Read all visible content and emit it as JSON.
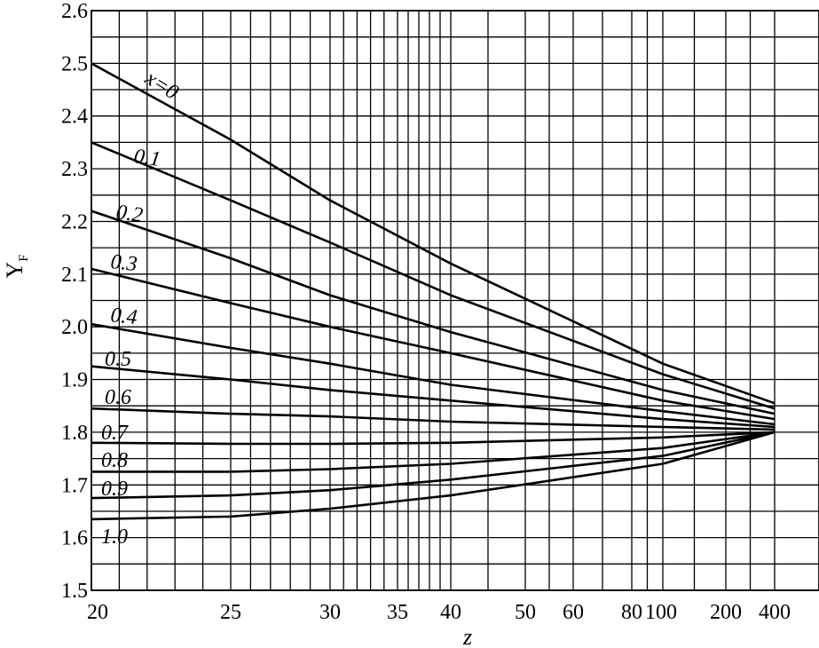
{
  "chart_data": {
    "type": "line",
    "xlabel": "z",
    "ylabel": "Y",
    "ylabel_subscript": "F",
    "x_scale": "nonlinear (reciprocal-type, 20 to 400)",
    "ylim": [
      1.5,
      2.6
    ],
    "grid": true,
    "x_ticks": [
      "20",
      "25",
      "30",
      "35",
      "40",
      "50",
      "60",
      "80",
      "100",
      "200",
      "400"
    ],
    "y_ticks": [
      "1.5",
      "1.6",
      "1.7",
      "1.8",
      "1.9",
      "2.0",
      "2.1",
      "2.2",
      "2.3",
      "2.4",
      "2.5",
      "2.6"
    ],
    "series": [
      {
        "name": "x=0",
        "points": [
          [
            20,
            2.5
          ],
          [
            25,
            2.355
          ],
          [
            30,
            2.24
          ],
          [
            40,
            2.12
          ],
          [
            100,
            1.93
          ],
          [
            400,
            1.855
          ]
        ]
      },
      {
        "name": "0.1",
        "points": [
          [
            20,
            2.35
          ],
          [
            25,
            2.24
          ],
          [
            30,
            2.16
          ],
          [
            40,
            2.06
          ],
          [
            100,
            1.91
          ],
          [
            400,
            1.845
          ]
        ]
      },
      {
        "name": "0.2",
        "points": [
          [
            20,
            2.22
          ],
          [
            25,
            2.13
          ],
          [
            30,
            2.06
          ],
          [
            40,
            1.99
          ],
          [
            100,
            1.88
          ],
          [
            400,
            1.835
          ]
        ]
      },
      {
        "name": "0.3",
        "points": [
          [
            20,
            2.11
          ],
          [
            25,
            2.045
          ],
          [
            30,
            2.0
          ],
          [
            40,
            1.95
          ],
          [
            100,
            1.86
          ],
          [
            400,
            1.825
          ]
        ]
      },
      {
        "name": "0.4",
        "points": [
          [
            20,
            2.005
          ],
          [
            25,
            1.96
          ],
          [
            30,
            1.93
          ],
          [
            40,
            1.89
          ],
          [
            100,
            1.84
          ],
          [
            400,
            1.815
          ]
        ]
      },
      {
        "name": "0.5",
        "points": [
          [
            20,
            1.925
          ],
          [
            25,
            1.9
          ],
          [
            30,
            1.88
          ],
          [
            40,
            1.86
          ],
          [
            100,
            1.825
          ],
          [
            400,
            1.81
          ]
        ]
      },
      {
        "name": "0.6",
        "points": [
          [
            20,
            1.845
          ],
          [
            25,
            1.835
          ],
          [
            30,
            1.83
          ],
          [
            40,
            1.82
          ],
          [
            100,
            1.81
          ],
          [
            400,
            1.805
          ]
        ]
      },
      {
        "name": "0.7",
        "points": [
          [
            20,
            1.78
          ],
          [
            25,
            1.778
          ],
          [
            30,
            1.778
          ],
          [
            40,
            1.78
          ],
          [
            100,
            1.79
          ],
          [
            400,
            1.8
          ]
        ]
      },
      {
        "name": "0.8",
        "points": [
          [
            20,
            1.725
          ],
          [
            25,
            1.725
          ],
          [
            30,
            1.73
          ],
          [
            40,
            1.74
          ],
          [
            100,
            1.77
          ],
          [
            400,
            1.8
          ]
        ]
      },
      {
        "name": "0.9",
        "points": [
          [
            20,
            1.675
          ],
          [
            25,
            1.68
          ],
          [
            30,
            1.69
          ],
          [
            40,
            1.71
          ],
          [
            100,
            1.755
          ],
          [
            400,
            1.8
          ]
        ]
      },
      {
        "name": "1.0",
        "points": [
          [
            20,
            1.635
          ],
          [
            25,
            1.64
          ],
          [
            30,
            1.655
          ],
          [
            40,
            1.68
          ],
          [
            100,
            1.74
          ],
          [
            400,
            1.8
          ]
        ]
      }
    ]
  }
}
